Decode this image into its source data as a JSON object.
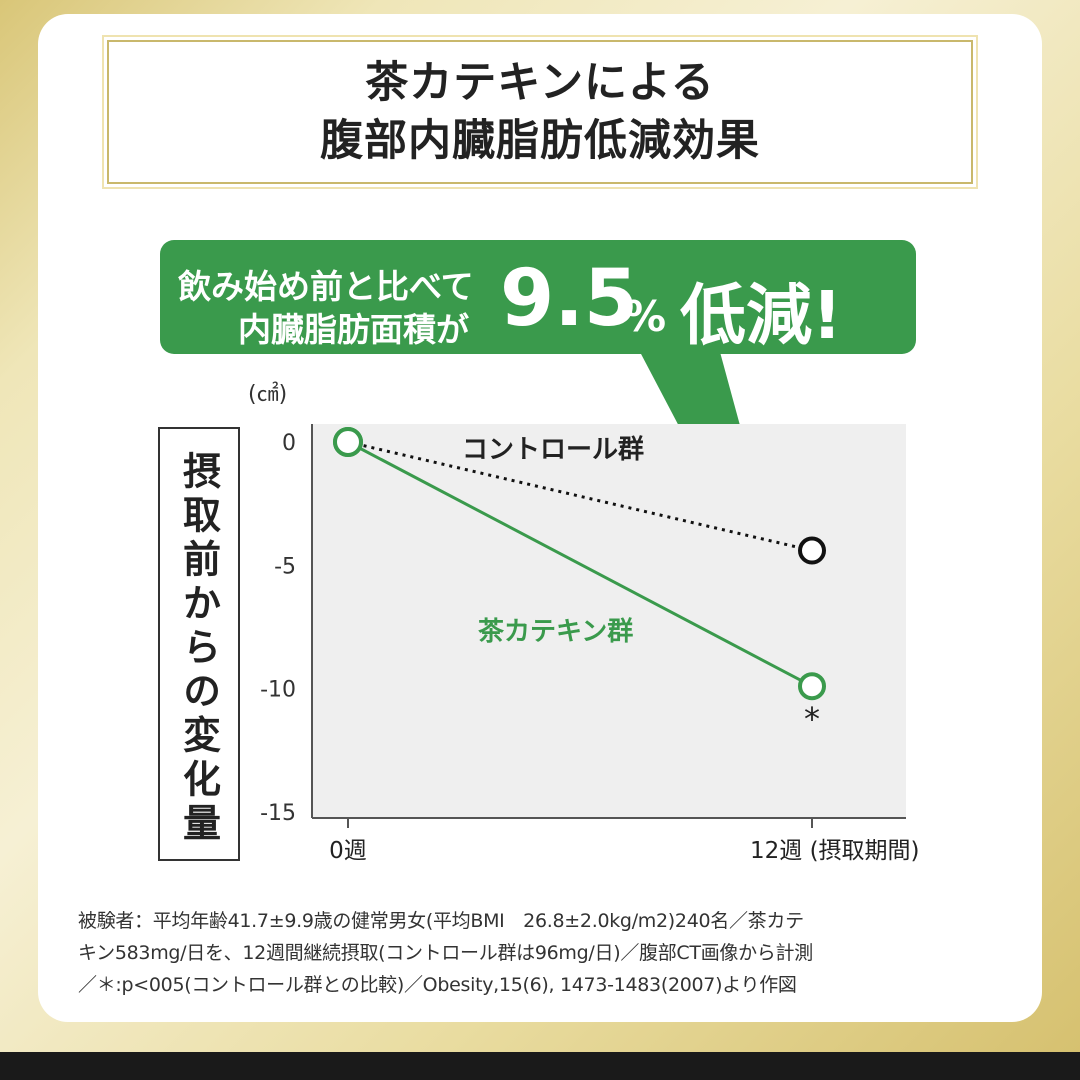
{
  "title": {
    "line1": "茶カテキンによる",
    "line2": "腹部内臓脂肪低減効果"
  },
  "callout": {
    "line1": "飲み始め前と比べて",
    "line2": "内臓脂肪面積が",
    "value": "9.5",
    "unit": "%",
    "suffix": "低減!"
  },
  "colors": {
    "green": "#3a9a4c",
    "control": "#111111",
    "plot_bg": "#efefef",
    "gold": "#c9b86c"
  },
  "chart_data": {
    "type": "line",
    "unit_label": "(㎠)",
    "ylabel": "摂取前からの変化量",
    "ylim": [
      -15,
      0
    ],
    "yticks": [
      "0",
      "-5",
      "-10",
      "-15"
    ],
    "x": [
      0,
      12
    ],
    "xtick_labels": [
      "0週",
      "12週 (摂取期間)"
    ],
    "grid": false,
    "series": [
      {
        "name": "コントロール群",
        "values": [
          0,
          -4.4
        ],
        "color": "#111111",
        "style": "dotted"
      },
      {
        "name": "茶カテキン群",
        "values": [
          0,
          -9.9
        ],
        "color": "#3a9a4c",
        "style": "solid",
        "significance_marker": "*"
      }
    ]
  },
  "footnote": {
    "line1": "被験者：平均年齢41.7±9.9歳の健常男女(平均BMI　26.8±2.0kg/m2)240名／茶カテ",
    "line2": "キン583mg/日を、12週間継続摂取(コントロール群は96mg/日)／腹部CT画像から計測",
    "line3": "／＊:p<005(コントロール群との比較)／Obesity,15(6), 1473-1483(2007)より作図"
  }
}
